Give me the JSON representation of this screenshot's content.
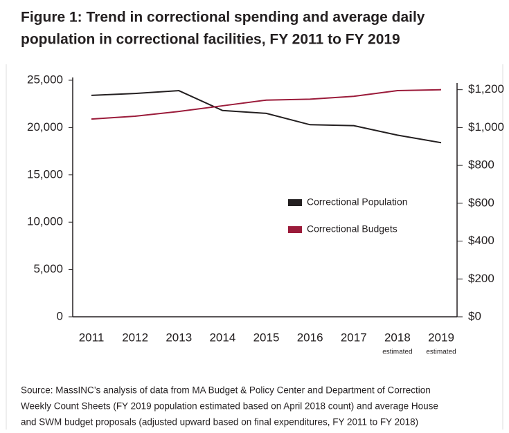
{
  "chart_data": {
    "type": "line",
    "title_lines": [
      "Figure 1: Trend in correctional spending and average daily",
      "population in correctional facilities, FY 2011 to FY 2019"
    ],
    "categories": [
      "2011",
      "2012",
      "2013",
      "2014",
      "2015",
      "2016",
      "2017",
      "2018",
      "2019"
    ],
    "category_notes": [
      null,
      null,
      null,
      null,
      null,
      null,
      null,
      "estimated",
      "estimated"
    ],
    "series": [
      {
        "name": "Correctional Population",
        "color": "#231f20",
        "values": [
          23400,
          23600,
          23900,
          21800,
          21500,
          20300,
          20200,
          19200,
          18400
        ]
      },
      {
        "name": "Correctional Budgets",
        "color": "#9b1b3a",
        "axis": "y2",
        "values": [
          1045,
          1060,
          1085,
          1115,
          1145,
          1150,
          1165,
          1195,
          1200
        ]
      }
    ],
    "ylim": [
      0,
      25000
    ],
    "yticks": [
      0,
      {
        "value": 5000,
        "label": "5,000"
      },
      {
        "value": 10000,
        "label": "10,000"
      },
      {
        "value": 15000,
        "label": "15,000"
      },
      {
        "value": 20000,
        "label": "20,000"
      },
      {
        "value": 25000,
        "label": "25,000"
      }
    ],
    "y2lim": [
      0,
      1250
    ],
    "y2ticks": [
      {
        "value": 0,
        "label": "$0"
      },
      {
        "value": 200,
        "label": "$200"
      },
      {
        "value": 400,
        "label": "$400"
      },
      {
        "value": 600,
        "label": "$600"
      },
      {
        "value": 800,
        "label": "$800"
      },
      {
        "value": 1000,
        "label": "$1,000"
      },
      {
        "value": 1200,
        "label": "$1,200"
      }
    ],
    "source_lines": [
      "Source: MassINC’s analysis of data from MA Budget & Policy Center and Department of Correction",
      "Weekly Count Sheets (FY 2019 population estimated based on April 2018 count) and average House",
      "and SWM budget proposals (adjusted upward based on final expenditures, FY 2011 to FY 2018)"
    ]
  }
}
